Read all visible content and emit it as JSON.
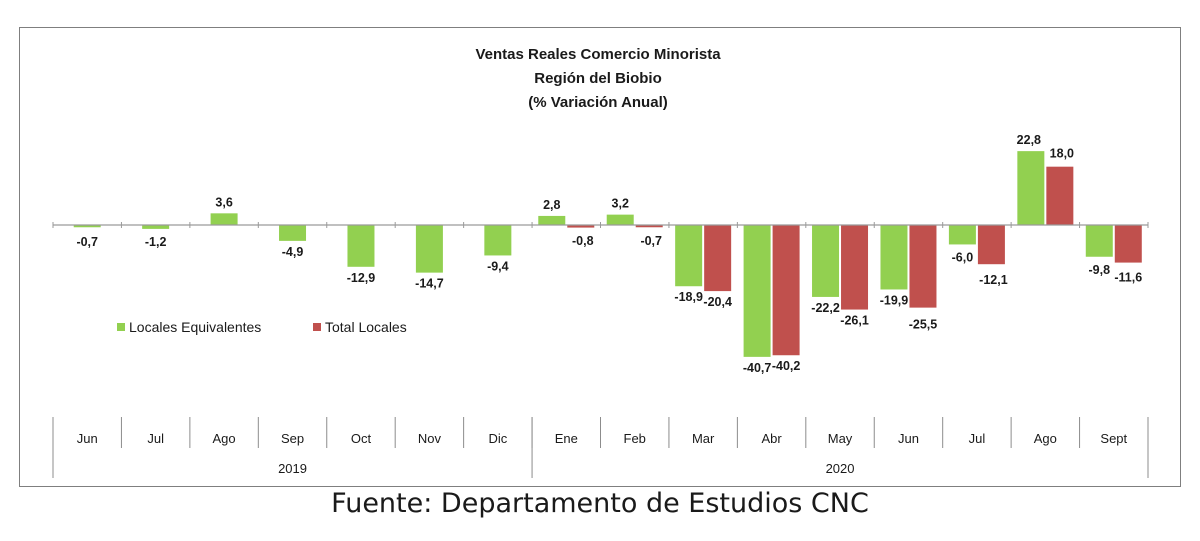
{
  "source": "Fuente: Departamento de Estudios CNC",
  "chart_data": {
    "type": "bar",
    "title": [
      "Ventas Reales Comercio Minorista",
      "Región del Biobio",
      "(% Variación Anual)"
    ],
    "categories": [
      "Jun",
      "Jul",
      "Ago",
      "Sep",
      "Oct",
      "Nov",
      "Dic",
      "Ene",
      "Feb",
      "Mar",
      "Abr",
      "May",
      "Jun",
      "Jul",
      "Ago",
      "Sept"
    ],
    "groups": [
      {
        "label": "2019",
        "span": 7
      },
      {
        "label": "2020",
        "span": 9
      }
    ],
    "series": [
      {
        "name": "Locales Equivalentes",
        "color": "#92d050",
        "values": [
          -0.7,
          -1.2,
          3.6,
          -4.9,
          -12.9,
          -14.7,
          -9.4,
          2.8,
          3.2,
          -18.9,
          -40.7,
          -22.2,
          -19.9,
          -6.0,
          22.8,
          -9.8
        ],
        "labels": [
          "-0,7",
          "-1,2",
          "3,6",
          "-4,9",
          "-12,9",
          "-14,7",
          "-9,4",
          "2,8",
          "3,2",
          "-18,9",
          "-40,7",
          "-22,2",
          "-19,9",
          "-6,0",
          "22,8",
          "-9,8"
        ]
      },
      {
        "name": "Total Locales",
        "color": "#c0504d",
        "values": [
          null,
          null,
          null,
          null,
          null,
          null,
          null,
          -0.8,
          -0.7,
          -20.4,
          -40.2,
          -26.1,
          -25.5,
          -12.1,
          18.0,
          -11.6
        ],
        "labels": [
          null,
          null,
          null,
          null,
          null,
          null,
          null,
          "-0,8",
          "-0,7",
          "-20,4",
          "-40,2",
          "-26,1",
          "-25,5",
          "-12,1",
          "18,0",
          "-11,6"
        ]
      }
    ],
    "legend_position": "left-middle",
    "grid": false
  }
}
